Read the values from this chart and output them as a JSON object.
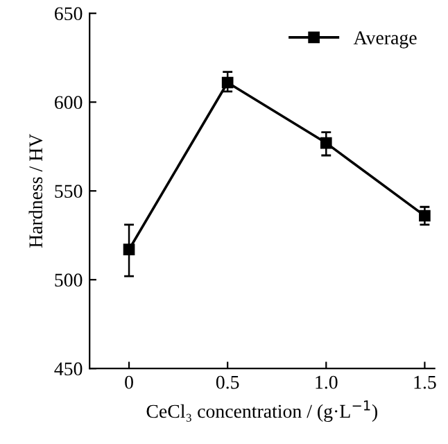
{
  "chart_data": {
    "type": "line",
    "xlabel": "CeCl₃ concentration / (g·L$^{−1}$)",
    "ylabel": "Hardness / HV",
    "x": [
      0,
      0.5,
      1.0,
      1.5
    ],
    "series": [
      {
        "name": "Average",
        "color": "#000000",
        "values": [
          517,
          611,
          577,
          536
        ],
        "errors": [
          [
            502,
            531
          ],
          [
            606,
            617
          ],
          [
            570,
            583
          ],
          [
            531,
            541
          ]
        ]
      }
    ],
    "xlim": [
      -0.2,
      1.55
    ],
    "xticks": [
      0,
      0.5,
      {
        "value": 1.0,
        "label": "1.0"
      },
      1.5
    ],
    "ylim": [
      450,
      650
    ],
    "yticks": [
      450,
      500,
      550,
      600,
      650
    ],
    "marker": "square",
    "line_style": "solid",
    "grid": false,
    "legend": "top right"
  }
}
